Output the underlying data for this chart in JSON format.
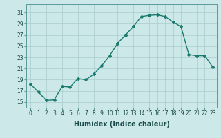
{
  "x": [
    0,
    1,
    2,
    3,
    4,
    5,
    6,
    7,
    8,
    9,
    10,
    11,
    12,
    13,
    14,
    15,
    16,
    17,
    18,
    19,
    20,
    21,
    22,
    23
  ],
  "y": [
    18.2,
    16.8,
    15.3,
    15.4,
    17.8,
    17.7,
    19.2,
    19.0,
    20.0,
    21.5,
    23.3,
    25.5,
    27.0,
    28.5,
    30.3,
    30.5,
    30.6,
    30.3,
    29.3,
    28.5,
    23.5,
    23.3,
    23.3,
    21.3
  ],
  "line_color": "#1a7a6e",
  "marker": "D",
  "marker_size": 2,
  "bg_color": "#cce8e8",
  "grid_color": "#aacccc",
  "xlabel": "Humidex (Indice chaleur)",
  "ylim": [
    14.0,
    32.5
  ],
  "xlim": [
    -0.5,
    23.5
  ],
  "yticks": [
    15,
    17,
    19,
    21,
    23,
    25,
    27,
    29,
    31
  ],
  "xticks": [
    0,
    1,
    2,
    3,
    4,
    5,
    6,
    7,
    8,
    9,
    10,
    11,
    12,
    13,
    14,
    15,
    16,
    17,
    18,
    19,
    20,
    21,
    22,
    23
  ],
  "tick_fontsize": 5.5,
  "xlabel_fontsize": 7,
  "linewidth": 1.0
}
